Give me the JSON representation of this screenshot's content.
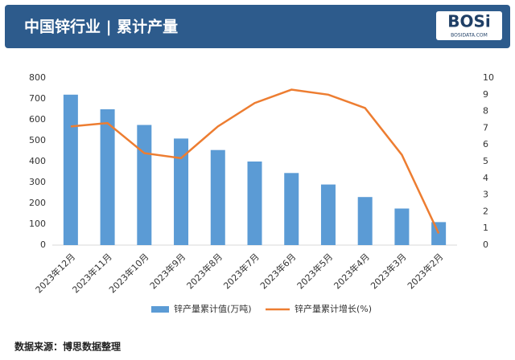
{
  "header": {
    "title": "中国锌行业 | 累计产量",
    "logo": "BOSi",
    "logo_sub": "BOSIDATA.COM"
  },
  "chart_data": {
    "type": "bar-line",
    "categories": [
      "2023年12月",
      "2023年11月",
      "2023年10月",
      "2023年9月",
      "2023年8月",
      "2023年7月",
      "2023年6月",
      "2023年5月",
      "2023年4月",
      "2023年3月",
      "2023年2月"
    ],
    "series": [
      {
        "name": "锌产量累计值(万吨)",
        "type": "bar",
        "color": "#5b9bd5",
        "values": [
          720,
          650,
          575,
          510,
          455,
          400,
          345,
          290,
          230,
          175,
          110
        ]
      },
      {
        "name": "锌产量累计增长(%)",
        "type": "line",
        "axis": "y2",
        "color": "#ed7d31",
        "values": [
          7.1,
          7.3,
          5.5,
          5.2,
          7.1,
          8.5,
          9.3,
          9.0,
          8.2,
          5.4,
          0.7
        ]
      }
    ],
    "ylim": [
      0,
      800
    ],
    "yticks": [
      0,
      100,
      200,
      300,
      400,
      500,
      600,
      700,
      800
    ],
    "y2lim": [
      0,
      10
    ],
    "y2ticks": [
      0,
      1,
      2,
      3,
      4,
      5,
      6,
      7,
      8,
      9,
      10
    ],
    "grid": false,
    "legend": "bottom"
  },
  "footer": {
    "source": "数据来源：博思数据整理"
  }
}
